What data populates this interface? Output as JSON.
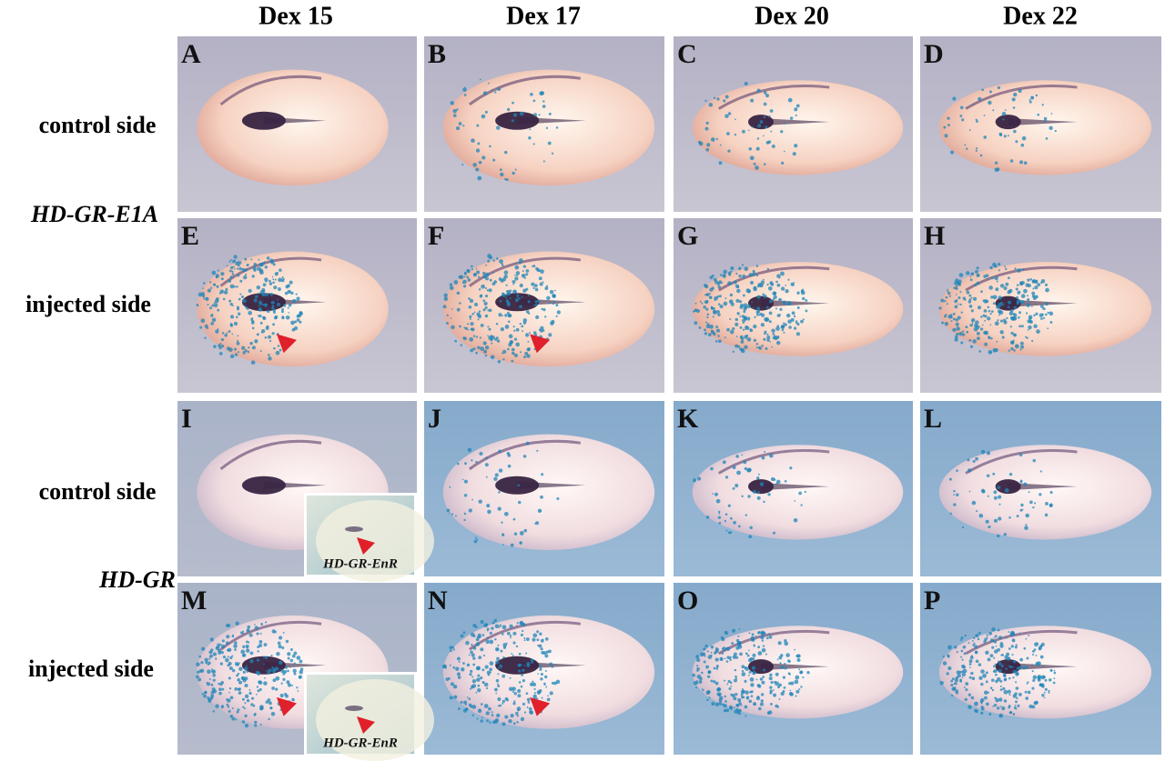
{
  "column_headers": [
    "Dex 15",
    "Dex 17",
    "Dex 20",
    "Dex 22"
  ],
  "row_labels": [
    "control side",
    "HD-GR-E1A",
    "injected side",
    "control side",
    "HD-GR",
    "injected side"
  ],
  "panels": [
    {
      "letter": "A"
    },
    {
      "letter": "B"
    },
    {
      "letter": "C"
    },
    {
      "letter": "D"
    },
    {
      "letter": "E"
    },
    {
      "letter": "F"
    },
    {
      "letter": "G"
    },
    {
      "letter": "H"
    },
    {
      "letter": "I"
    },
    {
      "letter": "J"
    },
    {
      "letter": "K"
    },
    {
      "letter": "L"
    },
    {
      "letter": "M"
    },
    {
      "letter": "N"
    },
    {
      "letter": "O"
    },
    {
      "letter": "P"
    }
  ],
  "insets": [
    {
      "label": "HD-GR-EnR"
    },
    {
      "label": "HD-GR-EnR"
    }
  ]
}
